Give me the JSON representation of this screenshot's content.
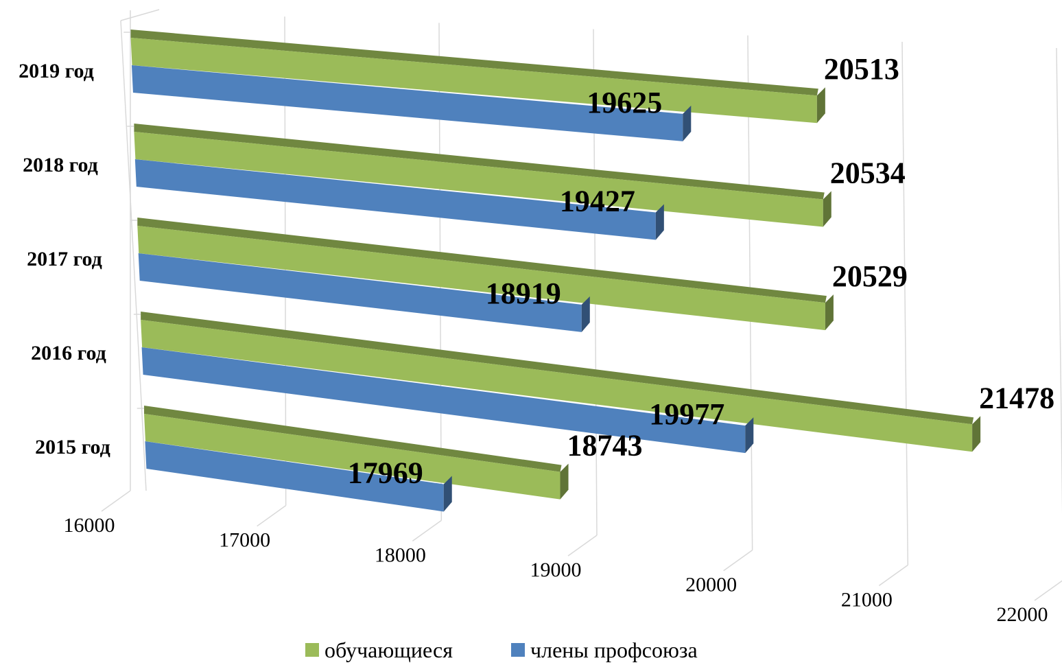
{
  "chart_data": {
    "type": "bar",
    "orientation": "horizontal",
    "style": "3d",
    "categories": [
      "2015 год",
      "2016 год",
      "2017 год",
      "2018 год",
      "2019 год"
    ],
    "series": [
      {
        "name": "обучающиеся",
        "color": "#9BBB59",
        "values": [
          18743,
          21478,
          20529,
          20534,
          20513
        ]
      },
      {
        "name": "члены профсоюза",
        "color": "#4F81BD",
        "values": [
          17969,
          19977,
          18919,
          19427,
          19625
        ]
      }
    ],
    "xlim": [
      16000,
      22000
    ],
    "xticks": [
      16000,
      17000,
      18000,
      19000,
      20000,
      21000,
      22000
    ],
    "grid": true,
    "legend_position": "bottom",
    "data_labels": true
  }
}
